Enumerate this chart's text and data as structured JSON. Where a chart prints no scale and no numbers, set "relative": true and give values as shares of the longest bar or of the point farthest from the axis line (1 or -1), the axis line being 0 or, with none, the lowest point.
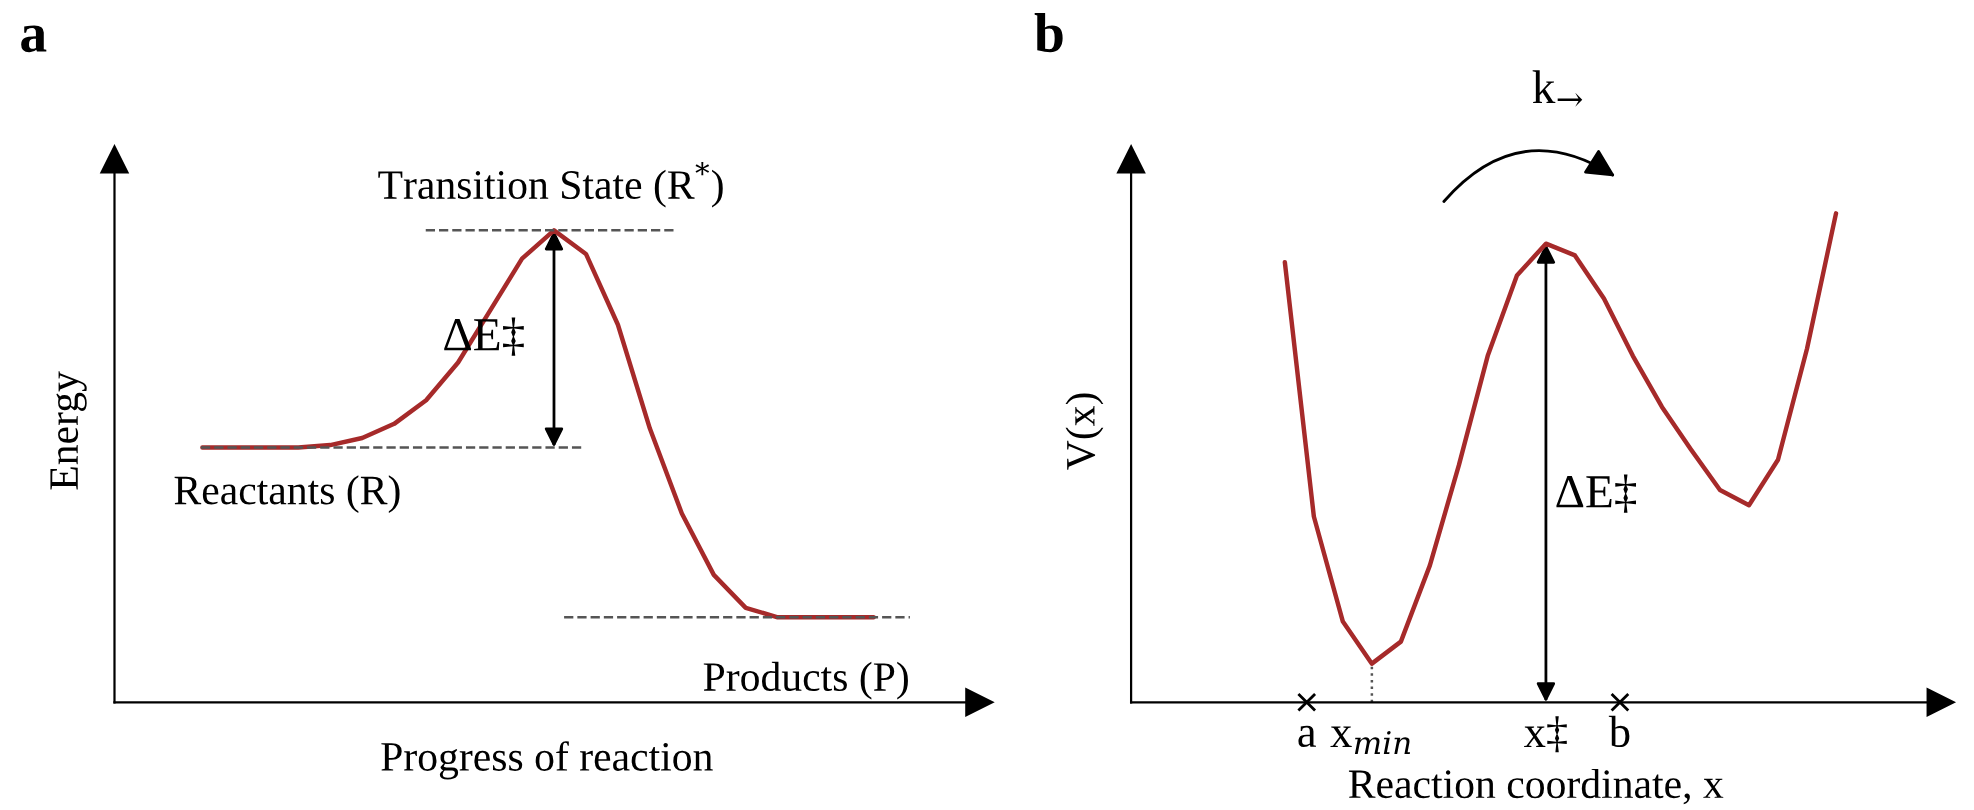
{
  "chart_data": [
    {
      "type": "line",
      "title": "a",
      "xlabel": "Progress of reaction",
      "ylabel": "Energy",
      "relative": true,
      "categories": [
        null,
        null,
        null,
        null,
        null,
        null,
        null,
        null,
        null,
        null,
        null,
        null,
        null,
        null,
        null,
        null,
        null,
        null,
        null,
        null,
        null,
        null
      ],
      "series": [
        {
          "color": "#a62a2a",
          "values": [
            0.54,
            0.54,
            0.54,
            0.54,
            0.545,
            0.56,
            0.59,
            0.64,
            0.72,
            0.83,
            0.94,
            1.0,
            0.95,
            0.8,
            0.58,
            0.4,
            0.27,
            0.2,
            0.18,
            0.18,
            0.18,
            0.18
          ]
        }
      ],
      "ref_lines": [
        {
          "axis": "y",
          "value": 1.0,
          "label": "Transition State (R$^{*}$)",
          "line_style": "dashed"
        },
        {
          "axis": "y",
          "value": 0.54,
          "label": "Reactants (R)",
          "line_style": "dashed"
        },
        {
          "axis": "y",
          "value": 0.18,
          "label": "Products (P)",
          "line_style": "dashed"
        }
      ],
      "annotations": [
        {
          "text": "ΔE‡",
          "y": 1.0
        }
      ]
    },
    {
      "type": "line",
      "title": "b",
      "xlabel": "Reaction coordinate, x",
      "ylabel": "V(x)",
      "relative": true,
      "categories": [
        null,
        null,
        null,
        null,
        null,
        null,
        null,
        null,
        null,
        null,
        null,
        null,
        null,
        null,
        null,
        null,
        null,
        null,
        null,
        null
      ],
      "series": [
        {
          "color": "#a62a2a",
          "values": [
            0.9,
            0.38,
            0.165,
            0.079,
            0.124,
            0.28,
            0.485,
            0.71,
            0.873,
            0.938,
            0.914,
            0.826,
            0.708,
            0.604,
            0.517,
            0.434,
            0.403,
            0.496,
            0.723,
            1.0
          ]
        }
      ],
      "annotations": [
        "ΔE‡",
        "k$_{→}$",
        "a",
        "x$_{min}$",
        "x‡",
        "b"
      ]
    }
  ]
}
